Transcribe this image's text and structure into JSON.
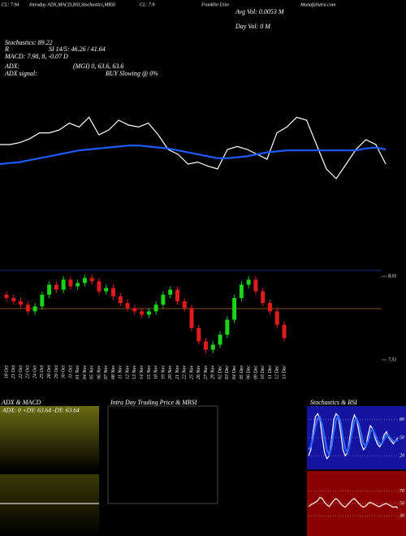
{
  "header": {
    "line1": [
      "CL: 7.94",
      "Intraday ADX,MACD,RSI,Stochastics,MRSI",
      "CL: 7.9",
      "Franklin Univ",
      "Avg Vol: 0.0053 M",
      "MunafaSutra.com"
    ],
    "line2": [
      "Day Vol: 0 M"
    ],
    "stochastics": "Stochastics: 89.22",
    "r": "R",
    "rsi": "SI 14/5: 46.26 / 41.64",
    "macd": "MACD: 7.98, 8, -0.07 D",
    "adx": "ADX:",
    "mgi": "(MGI) 0, 63.6, 63.6",
    "adx_signal": "ADX signal:",
    "buy": "BUY Slowing @ 0%"
  },
  "panels": {
    "left_title": "ADX & MACD",
    "left_text": "ADX: 0  +DY: 63.64  -DY: 63.64",
    "middle_title": "Intra Day Trading Price & MRSI",
    "right_title": "Stochastics & RSI"
  },
  "chart_data": [
    {
      "type": "line",
      "ylim": [
        0,
        100
      ],
      "series": [
        {
          "name": "Price",
          "color": "#ffffff",
          "values": [
            60,
            60,
            62,
            66,
            72,
            72,
            75,
            82,
            78,
            88,
            70,
            75,
            85,
            80,
            78,
            82,
            70,
            55,
            50,
            40,
            42,
            38,
            35,
            55,
            58,
            55,
            50,
            45,
            72,
            78,
            88,
            85,
            60,
            35,
            25,
            40,
            55,
            65,
            60,
            40
          ]
        },
        {
          "name": "Average",
          "color": "#1e5bff",
          "values": [
            40,
            41,
            42,
            44,
            46,
            48,
            50,
            52,
            54,
            55,
            56,
            57,
            58,
            59,
            59,
            58,
            57,
            56,
            54,
            52,
            50,
            48,
            46,
            46,
            47,
            48,
            50,
            52,
            53,
            54,
            54,
            54,
            54,
            54,
            54,
            54,
            54,
            56,
            57,
            55
          ]
        }
      ]
    },
    {
      "type": "candlestick",
      "ylim": [
        7.5,
        8.06
      ],
      "yticks": [
        7.51,
        8.01
      ],
      "categories": [
        "18 Oct",
        "21 Oct",
        "22 Oct",
        "23 Oct",
        "24 Oct",
        "25 Oct",
        "28 Oct",
        "29 Oct",
        "30 Oct",
        "31 Oct",
        "01 Nov",
        "04 Nov",
        "05 Nov",
        "06 Nov",
        "07 Nov",
        "08 Nov",
        "11 Nov",
        "12 Nov",
        "13 Nov",
        "14 Nov",
        "15 Nov",
        "18 Nov",
        "19 Nov",
        "20 Nov",
        "21 Nov",
        "22 Nov",
        "25 Nov",
        "26 Nov",
        "27 Nov",
        "29 Nov",
        "02 Dec",
        "03 Dec",
        "04 Dec",
        "05 Dec",
        "06 Dec",
        "09 Dec",
        "10 Dec",
        "11 Dec",
        "12 Dec",
        "13 Dec"
      ],
      "open": [
        7.9,
        7.88,
        7.86,
        7.84,
        7.8,
        7.83,
        7.9,
        7.96,
        7.93,
        7.99,
        7.95,
        7.97,
        8.0,
        7.98,
        7.92,
        7.94,
        7.89,
        7.85,
        7.82,
        7.8,
        7.78,
        7.8,
        7.84,
        7.9,
        7.93,
        7.86,
        7.82,
        7.7,
        7.62,
        7.57,
        7.6,
        7.66,
        7.75,
        7.88,
        7.96,
        7.99,
        7.92,
        7.85,
        7.8,
        7.72
      ],
      "high": [
        7.92,
        7.9,
        7.88,
        7.86,
        7.85,
        7.92,
        7.98,
        7.98,
        8.01,
        8.01,
        7.99,
        8.02,
        8.02,
        8.0,
        7.96,
        7.96,
        7.91,
        7.87,
        7.84,
        7.82,
        7.82,
        7.86,
        7.92,
        7.95,
        7.95,
        7.88,
        7.84,
        7.72,
        7.64,
        7.62,
        7.68,
        7.77,
        7.9,
        7.98,
        8.01,
        8.01,
        7.94,
        7.87,
        7.82,
        7.74
      ],
      "low": [
        7.86,
        7.84,
        7.82,
        7.78,
        7.78,
        7.81,
        7.88,
        7.91,
        7.91,
        7.93,
        7.93,
        7.95,
        7.96,
        7.9,
        7.9,
        7.87,
        7.83,
        7.8,
        7.78,
        7.76,
        7.76,
        7.78,
        7.82,
        7.88,
        7.84,
        7.8,
        7.68,
        7.6,
        7.55,
        7.55,
        7.58,
        7.64,
        7.73,
        7.86,
        7.94,
        7.9,
        7.83,
        7.78,
        7.7,
        7.62
      ],
      "close": [
        7.88,
        7.86,
        7.84,
        7.8,
        7.83,
        7.9,
        7.96,
        7.93,
        7.99,
        7.95,
        7.97,
        8.0,
        7.98,
        7.92,
        7.94,
        7.89,
        7.85,
        7.82,
        7.8,
        7.78,
        7.8,
        7.84,
        7.9,
        7.93,
        7.86,
        7.82,
        7.7,
        7.62,
        7.57,
        7.6,
        7.66,
        7.75,
        7.88,
        7.96,
        7.99,
        7.92,
        7.85,
        7.8,
        7.72,
        7.64
      ]
    },
    {
      "type": "line",
      "ylim": [
        0,
        100
      ],
      "yticks": [
        20,
        50,
        80
      ],
      "series": [
        {
          "name": "Stochastics",
          "color": "#ffffff",
          "values": [
            20,
            30,
            60,
            85,
            90,
            80,
            50,
            25,
            15,
            20,
            45,
            80,
            90,
            85,
            60,
            30,
            20,
            25,
            50,
            75,
            88,
            80,
            60,
            40,
            30,
            35,
            55,
            70,
            65,
            50,
            40,
            35,
            40,
            55,
            60,
            50,
            45,
            40,
            45,
            50
          ]
        },
        {
          "name": "Signal",
          "color": "#2f6bff",
          "values": [
            30,
            35,
            50,
            70,
            82,
            84,
            70,
            50,
            30,
            22,
            35,
            60,
            80,
            86,
            75,
            50,
            32,
            25,
            40,
            60,
            78,
            82,
            72,
            55,
            40,
            36,
            45,
            60,
            64,
            56,
            46,
            40,
            40,
            48,
            55,
            53,
            48,
            44,
            44,
            47
          ]
        }
      ]
    },
    {
      "type": "line",
      "ylim": [
        0,
        100
      ],
      "yticks": [
        30,
        50,
        70
      ],
      "series": [
        {
          "name": "RSI",
          "color": "#ffffff",
          "values": [
            45,
            48,
            50,
            52,
            55,
            60,
            58,
            52,
            48,
            45,
            50,
            55,
            58,
            55,
            50,
            46,
            44,
            48,
            52,
            56,
            58,
            54,
            50,
            46,
            44,
            46,
            50,
            52,
            50,
            48,
            46,
            45,
            47,
            49,
            50,
            48,
            46,
            44,
            45,
            43
          ]
        }
      ]
    }
  ]
}
